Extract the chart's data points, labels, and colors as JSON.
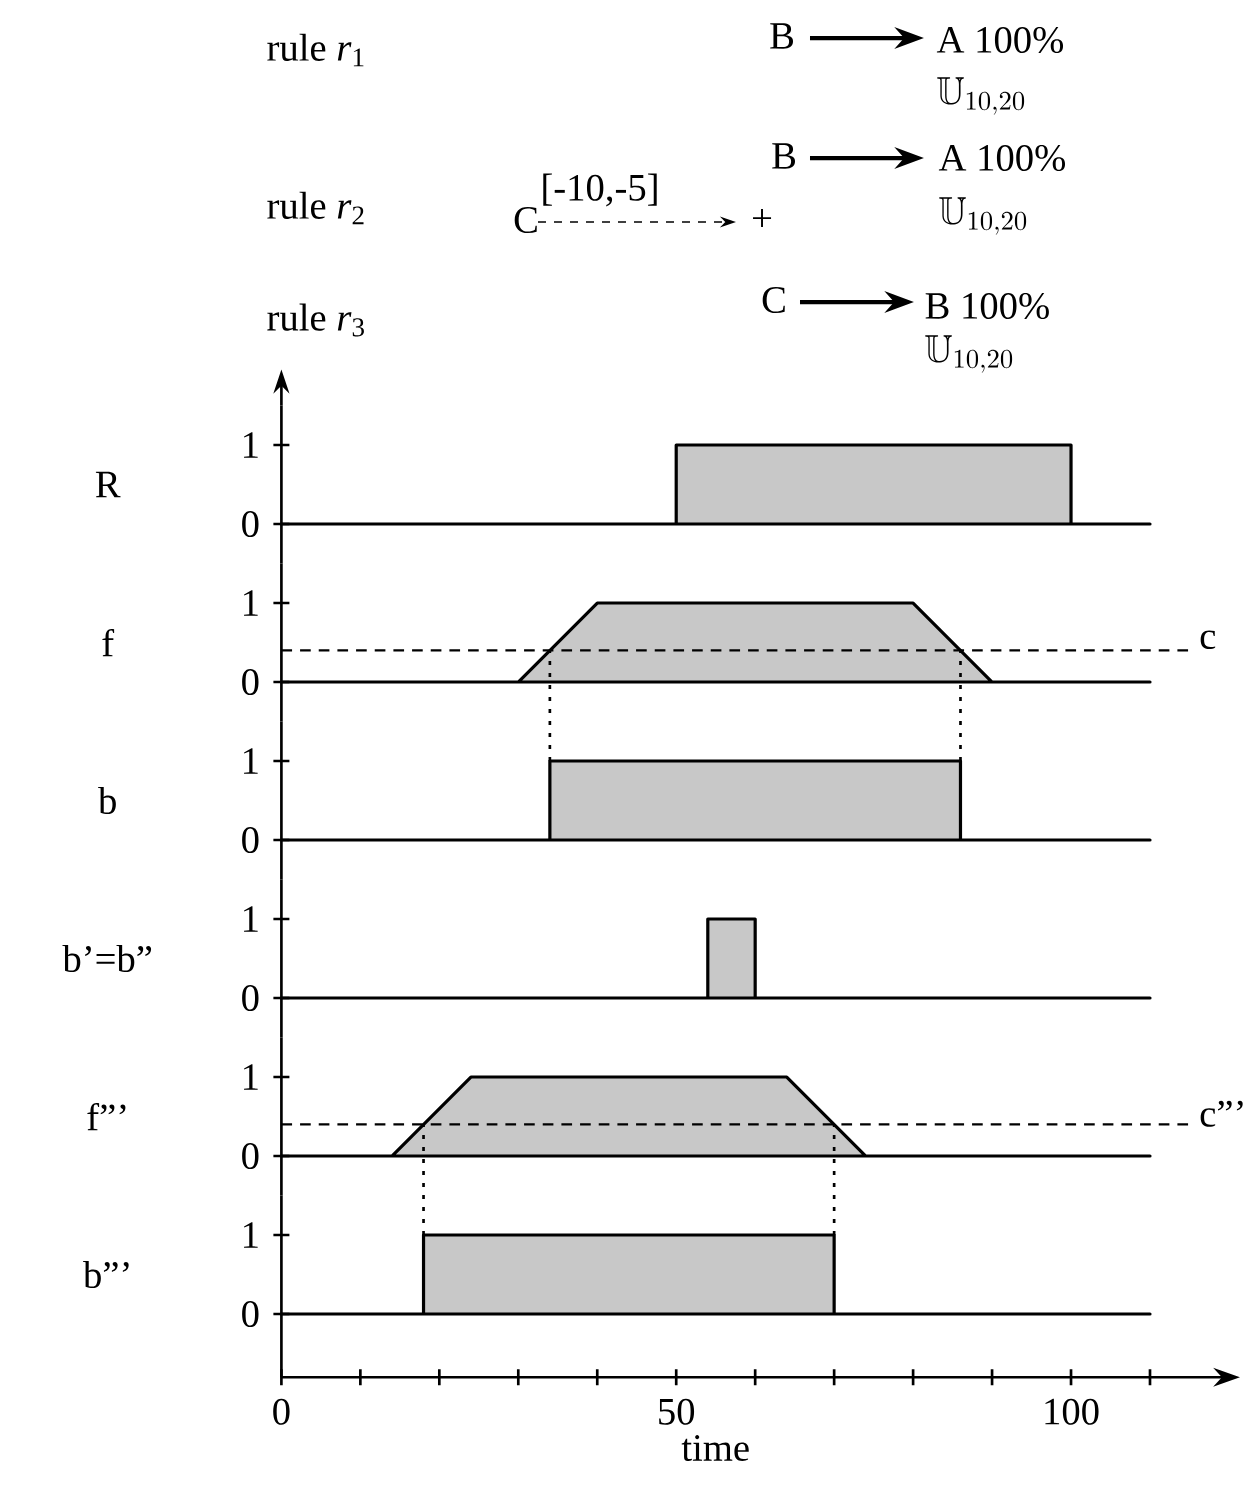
{
  "chart_data": [
    {
      "type": "other",
      "annotations": [
        "rule *r*$_{1}$",
        "rule *r*$_{2}$",
        "rule *r*$_{3}$",
        "B",
        "A 100%",
        "\\mathbb{U}_{10,20}",
        "B",
        "A 100%",
        "\\mathbb{U}_{10,20}",
        "C",
        "[-10,-5]",
        "+",
        "C",
        "B 100%",
        "\\mathbb{U}_{10,20}"
      ]
    },
    {
      "type": "area",
      "ylabel": "R",
      "x": [
        0,
        50,
        50,
        100,
        100,
        110
      ],
      "values": [
        0,
        0,
        1,
        1,
        0,
        0
      ],
      "color": "#c8c8c8",
      "xlim": [
        0,
        110
      ],
      "ylim": [
        -0.5,
        1.5
      ],
      "yticks": [
        0,
        1
      ],
      "tick_labels": "y"
    },
    {
      "type": "area",
      "ylabel": "f",
      "x": [
        0,
        30,
        40,
        80,
        90,
        110
      ],
      "values": [
        0,
        0,
        1,
        1,
        0,
        0
      ],
      "color": "#c8c8c8",
      "xlim": [
        0,
        110
      ],
      "ylim": [
        -0.5,
        1.5
      ],
      "yticks": [
        0,
        1
      ],
      "tick_labels": "y",
      "ref_lines": [
        {
          "axis": "y",
          "value": 0.4,
          "label": "c",
          "line_style": "dashed"
        }
      ]
    },
    {
      "type": "area",
      "ylabel": "b",
      "x": [
        0,
        34,
        34,
        86,
        86,
        110
      ],
      "values": [
        0,
        0,
        1,
        1,
        0,
        0
      ],
      "color": "#c8c8c8",
      "xlim": [
        0,
        110
      ],
      "ylim": [
        -0.5,
        1.5
      ],
      "yticks": [
        0,
        1
      ],
      "tick_labels": "y",
      "ref_lines": [
        {
          "axis": "x",
          "value": 34,
          "line_style": "dotted"
        },
        {
          "axis": "x",
          "value": 86,
          "line_style": "dotted"
        }
      ]
    },
    {
      "type": "area",
      "ylabel": "b’=b”",
      "x": [
        0,
        54,
        54,
        60,
        60,
        110
      ],
      "values": [
        0,
        0,
        1,
        1,
        0,
        0
      ],
      "color": "#c8c8c8",
      "xlim": [
        0,
        110
      ],
      "ylim": [
        -0.5,
        1.5
      ],
      "yticks": [
        0,
        1
      ],
      "tick_labels": "y"
    },
    {
      "type": "area",
      "ylabel": "f”’",
      "x": [
        0,
        14,
        24,
        64,
        74,
        110
      ],
      "values": [
        0,
        0,
        1,
        1,
        0,
        0
      ],
      "color": "#c8c8c8",
      "xlim": [
        0,
        110
      ],
      "ylim": [
        -0.5,
        1.5
      ],
      "yticks": [
        0,
        1
      ],
      "tick_labels": "y",
      "ref_lines": [
        {
          "axis": "y",
          "value": 0.4,
          "label": "c”’",
          "line_style": "dashed"
        }
      ]
    },
    {
      "type": "area",
      "ylabel": "b”’",
      "xlabel": "time",
      "x": [
        0,
        18,
        18,
        70,
        70,
        110
      ],
      "values": [
        0,
        0,
        1,
        1,
        0,
        0
      ],
      "color": "#c8c8c8",
      "xlim": [
        0,
        110
      ],
      "ylim": [
        -0.8,
        1.5
      ],
      "yticks": [
        0,
        1
      ],
      "xticks": [
        0,
        {
          "value": 10,
          "label": null
        },
        {
          "value": 20,
          "label": null
        },
        {
          "value": 30,
          "label": null
        },
        {
          "value": 40,
          "label": null
        },
        50,
        {
          "value": 60,
          "label": null
        },
        {
          "value": 70,
          "label": null
        },
        {
          "value": 80,
          "label": null
        },
        {
          "value": 90,
          "label": null
        },
        100,
        {
          "value": 110,
          "label": null
        }
      ],
      "ref_lines": [
        {
          "axis": "x",
          "value": 18,
          "line_style": "dotted"
        },
        {
          "axis": "x",
          "value": 70,
          "line_style": "dotted"
        }
      ]
    }
  ]
}
